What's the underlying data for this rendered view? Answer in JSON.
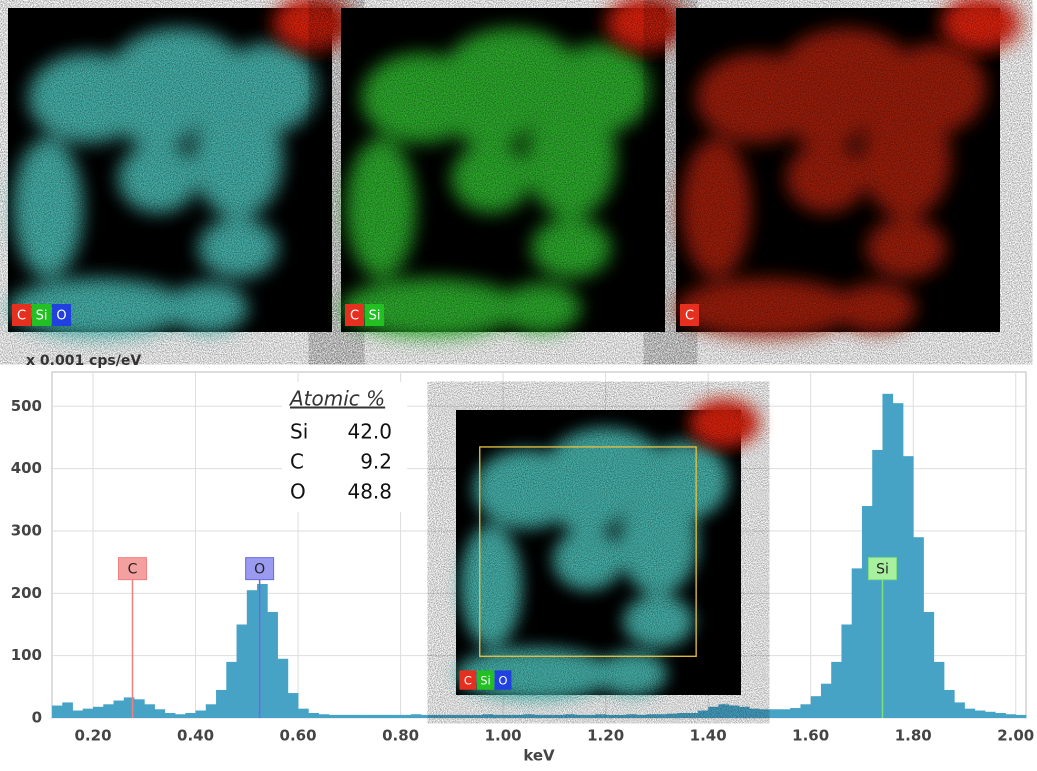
{
  "maps": [
    {
      "labels": [
        "C",
        "Si",
        "O"
      ],
      "colors": [
        "#e53020",
        "#22c022",
        "#2040e0"
      ]
    },
    {
      "labels": [
        "C",
        "Si"
      ],
      "colors": [
        "#e53020",
        "#22c022"
      ]
    },
    {
      "labels": [
        "C"
      ],
      "colors": [
        "#e53020"
      ]
    }
  ],
  "chart_data": {
    "type": "histogram",
    "ylabel": "x 0.001 cps/eV",
    "xlabel": "keV",
    "color": "#47a3c6",
    "grid": true,
    "xlim": [
      0.12,
      2.02
    ],
    "ylim": [
      0,
      555
    ],
    "yticks": [
      0,
      100,
      200,
      300,
      400,
      500
    ],
    "xticks": [
      {
        "value": 0.2,
        "label": "0.20"
      },
      {
        "value": 0.4,
        "label": "0.40"
      },
      {
        "value": 0.6,
        "label": "0.60"
      },
      {
        "value": 0.8,
        "label": "0.80"
      },
      {
        "value": 1.0,
        "label": "1.00"
      },
      {
        "value": 1.2,
        "label": "1.20"
      },
      {
        "value": 1.4,
        "label": "1.40"
      },
      {
        "value": 1.6,
        "label": "1.60"
      },
      {
        "value": 1.8,
        "label": "1.80"
      },
      {
        "value": 2.0,
        "label": "2.00"
      }
    ],
    "bins": [
      0.12,
      0.14,
      0.16,
      0.18,
      0.2,
      0.22,
      0.24,
      0.26,
      0.28,
      0.3,
      0.32,
      0.34,
      0.36,
      0.38,
      0.4,
      0.42,
      0.44,
      0.46,
      0.48,
      0.5,
      0.52,
      0.54,
      0.56,
      0.58,
      0.6,
      0.62,
      0.64,
      0.66,
      0.68,
      0.7,
      0.72,
      0.74,
      0.76,
      0.78,
      0.8,
      0.82,
      0.84,
      0.86,
      0.88,
      0.9,
      0.92,
      0.94,
      0.96,
      0.98,
      1.0,
      1.02,
      1.04,
      1.06,
      1.08,
      1.1,
      1.12,
      1.14,
      1.16,
      1.18,
      1.2,
      1.22,
      1.24,
      1.26,
      1.28,
      1.3,
      1.32,
      1.34,
      1.36,
      1.38,
      1.4,
      1.42,
      1.44,
      1.46,
      1.48,
      1.5,
      1.52,
      1.54,
      1.56,
      1.58,
      1.6,
      1.62,
      1.64,
      1.66,
      1.68,
      1.7,
      1.72,
      1.74,
      1.76,
      1.78,
      1.8,
      1.82,
      1.84,
      1.86,
      1.88,
      1.9,
      1.92,
      1.94,
      1.96,
      1.98,
      2.0,
      2.02
    ],
    "values": [
      20,
      25,
      12,
      15,
      18,
      22,
      28,
      33,
      30,
      22,
      14,
      8,
      6,
      8,
      12,
      22,
      45,
      90,
      150,
      205,
      215,
      170,
      95,
      40,
      15,
      8,
      6,
      5,
      5,
      5,
      5,
      5,
      5,
      5,
      5,
      6,
      5,
      5,
      5,
      5,
      5,
      5,
      6,
      5,
      5,
      5,
      6,
      5,
      5,
      5,
      6,
      5,
      5,
      6,
      5,
      5,
      6,
      5,
      6,
      6,
      7,
      8,
      8,
      12,
      18,
      22,
      20,
      18,
      15,
      14,
      14,
      14,
      16,
      22,
      35,
      55,
      90,
      150,
      240,
      340,
      430,
      520,
      505,
      420,
      290,
      170,
      90,
      45,
      25,
      15,
      12,
      10,
      8,
      6,
      5
    ],
    "markers": [
      {
        "label": "C",
        "x": 0.277,
        "y": 238,
        "color": "#f08080",
        "fill": "#f4a0a0"
      },
      {
        "label": "O",
        "x": 0.525,
        "y": 238,
        "color": "#6a6ae0",
        "fill": "#9a9af0"
      },
      {
        "label": "Si",
        "x": 1.74,
        "y": 238,
        "color": "#7fe07f",
        "fill": "#a8f0a0"
      }
    ],
    "table": {
      "title": "Atomic %",
      "rows": [
        [
          "Si",
          "42.0"
        ],
        [
          "C",
          "9.2"
        ],
        [
          "O",
          "48.8"
        ]
      ]
    },
    "inset": {
      "labels": [
        "C",
        "Si",
        "O"
      ],
      "colors": [
        "#e53020",
        "#22c022",
        "#2040e0"
      ]
    }
  }
}
